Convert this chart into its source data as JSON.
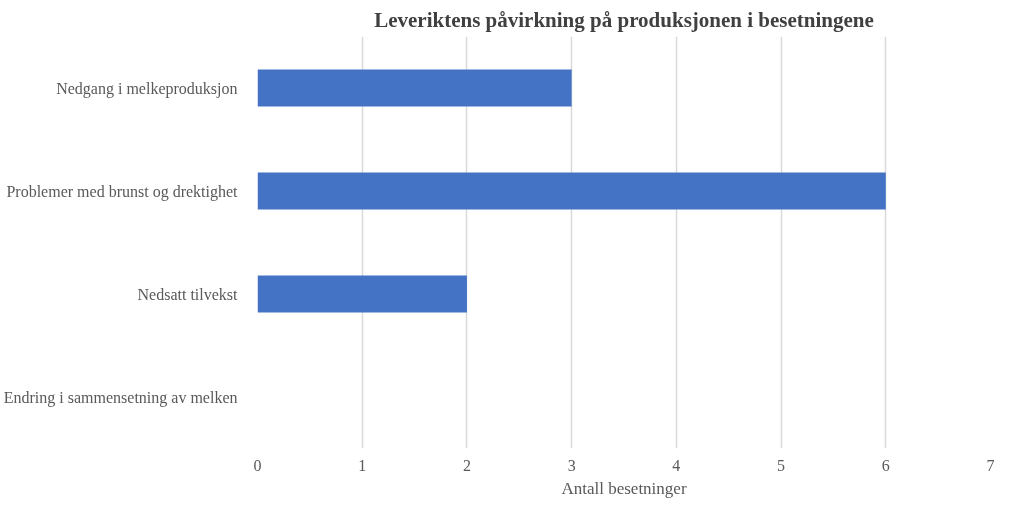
{
  "chart_data": {
    "type": "bar",
    "orientation": "horizontal",
    "title": "Leveriktens påvirkning på produksjonen i besetningene",
    "xlabel": "Antall besetninger",
    "categories": [
      "Nedgang i melkeproduksjon",
      "Problemer med brunst og drektighet",
      "Nedsatt tilvekst",
      "Endring i sammensetning av melken"
    ],
    "values": [
      3,
      6,
      2,
      0
    ],
    "color": "#4472c4",
    "xlim": [
      0,
      7
    ],
    "xticks": [
      0,
      1,
      2,
      3,
      4,
      5,
      6,
      7
    ],
    "grid": "x"
  }
}
